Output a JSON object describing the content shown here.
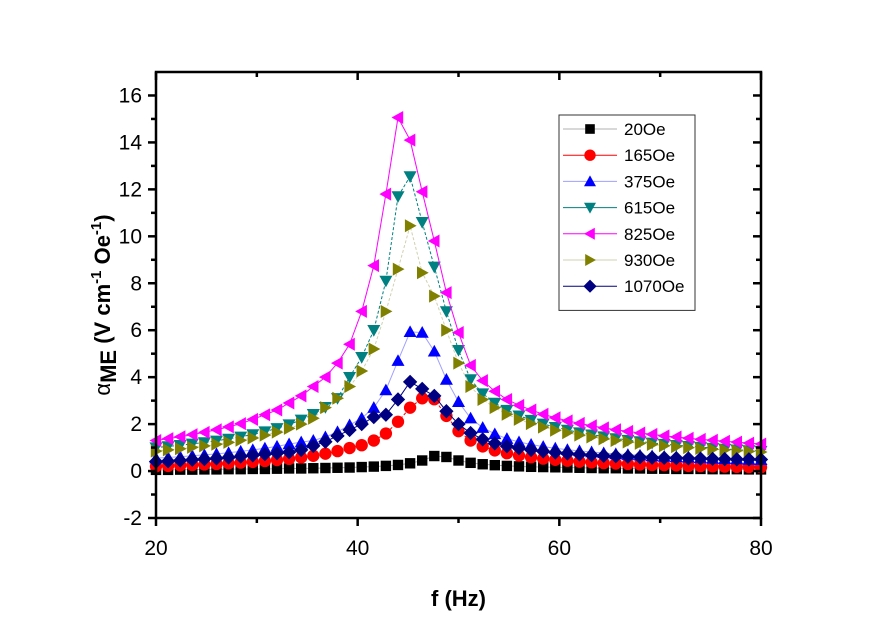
{
  "chart_data": {
    "type": "line",
    "title": "",
    "xlabel": "f (Hz)",
    "ylabel": {
      "symbol": "α",
      "subscript": "ME",
      "unit_open": " (V cm",
      "sup1": "-1",
      "unit_mid": " Oe",
      "sup2": "-1",
      "unit_close": ")"
    },
    "xlim": [
      20,
      80
    ],
    "ylim": [
      -2,
      17
    ],
    "xticks": [
      20,
      40,
      60,
      80
    ],
    "xticks_minor": [
      30,
      50,
      70
    ],
    "yticks": [
      -2,
      0,
      2,
      4,
      6,
      8,
      10,
      12,
      14,
      16
    ],
    "yticks_minor": [
      -1,
      1,
      3,
      5,
      7,
      9,
      11,
      13,
      15
    ],
    "grid": false,
    "legend_position": "top-right",
    "x": [
      20,
      21.2,
      22.4,
      23.6,
      24.8,
      26,
      27.2,
      28.4,
      29.6,
      30.8,
      32,
      33.2,
      34.4,
      35.6,
      36.8,
      38,
      39.2,
      40.4,
      41.6,
      42.8,
      44,
      45.2,
      46.4,
      47.6,
      48.8,
      50,
      51.2,
      52.4,
      53.6,
      54.8,
      56,
      57.2,
      58.4,
      59.6,
      60.8,
      62,
      63.2,
      64.4,
      65.6,
      66.8,
      68,
      69.2,
      70.4,
      71.6,
      72.8,
      74,
      75.2,
      76.4,
      77.6,
      78.8,
      80
    ],
    "series": [
      {
        "name": "20Oe",
        "marker": "square",
        "color": "#000000",
        "line_color": "#b0b0b0",
        "values": [
          0.05,
          0.05,
          0.06,
          0.06,
          0.07,
          0.07,
          0.08,
          0.08,
          0.09,
          0.09,
          0.1,
          0.11,
          0.11,
          0.12,
          0.13,
          0.14,
          0.15,
          0.17,
          0.19,
          0.22,
          0.26,
          0.33,
          0.45,
          0.64,
          0.6,
          0.45,
          0.35,
          0.29,
          0.25,
          0.22,
          0.2,
          0.18,
          0.17,
          0.16,
          0.15,
          0.14,
          0.13,
          0.12,
          0.12,
          0.11,
          0.11,
          0.1,
          0.1,
          0.09,
          0.09,
          0.09,
          0.08,
          0.08,
          0.08,
          0.07,
          0.07
        ]
      },
      {
        "name": "165Oe",
        "marker": "circle",
        "color": "#ff0000",
        "line_color": "#ff0000",
        "values": [
          0.2,
          0.22,
          0.24,
          0.26,
          0.28,
          0.3,
          0.33,
          0.36,
          0.39,
          0.43,
          0.47,
          0.52,
          0.58,
          0.65,
          0.74,
          0.85,
          0.98,
          1.1,
          1.3,
          1.6,
          2.1,
          2.7,
          3.1,
          3.06,
          2.35,
          1.7,
          1.3,
          1.05,
          0.88,
          0.76,
          0.66,
          0.59,
          0.53,
          0.48,
          0.44,
          0.4,
          0.37,
          0.34,
          0.32,
          0.3,
          0.28,
          0.26,
          0.25,
          0.24,
          0.22,
          0.21,
          0.2,
          0.19,
          0.18,
          0.17,
          0.16
        ]
      },
      {
        "name": "375Oe",
        "marker": "triangle-up",
        "color": "#0000ff",
        "line_color": "#a0a0ff",
        "values": [
          0.55,
          0.58,
          0.61,
          0.65,
          0.69,
          0.73,
          0.78,
          0.84,
          0.9,
          0.97,
          1.05,
          1.15,
          1.23,
          1.3,
          1.45,
          1.67,
          1.96,
          2.25,
          2.7,
          3.45,
          4.7,
          5.93,
          5.9,
          5.1,
          3.9,
          2.95,
          2.25,
          1.85,
          1.58,
          1.38,
          1.24,
          1.13,
          1.04,
          0.97,
          0.91,
          0.86,
          0.81,
          0.77,
          0.73,
          0.7,
          0.67,
          0.64,
          0.62,
          0.6,
          0.58,
          0.56,
          0.54,
          0.52,
          0.51,
          0.49,
          0.48
        ]
      },
      {
        "name": "615Oe",
        "marker": "triangle-down",
        "color": "#008080",
        "line_color": "#008080",
        "values": [
          1.0,
          1.05,
          1.1,
          1.16,
          1.22,
          1.29,
          1.37,
          1.46,
          1.56,
          1.68,
          1.82,
          1.98,
          2.18,
          2.42,
          2.72,
          3.1,
          4.0,
          4.85,
          6.0,
          8.1,
          11.7,
          12.55,
          10.6,
          8.7,
          6.8,
          5.15,
          3.9,
          3.3,
          2.9,
          2.6,
          2.36,
          2.17,
          2.01,
          1.87,
          1.75,
          1.64,
          1.55,
          1.47,
          1.39,
          1.32,
          1.26,
          1.2,
          1.15,
          1.1,
          1.06,
          1.02,
          0.98,
          0.94,
          0.91,
          0.88,
          0.85
        ]
      },
      {
        "name": "825Oe",
        "marker": "triangle-left",
        "color": "#ff00ff",
        "line_color": "#ff00ff",
        "values": [
          1.3,
          1.38,
          1.46,
          1.55,
          1.65,
          1.76,
          1.88,
          2.02,
          2.2,
          2.4,
          2.6,
          2.9,
          3.2,
          3.6,
          4.0,
          4.6,
          5.4,
          6.8,
          8.75,
          11.8,
          15.06,
          14.1,
          11.9,
          9.8,
          7.6,
          5.9,
          4.5,
          3.85,
          3.4,
          3.05,
          2.8,
          2.6,
          2.42,
          2.27,
          2.14,
          2.03,
          1.93,
          1.84,
          1.76,
          1.69,
          1.62,
          1.56,
          1.5,
          1.45,
          1.4,
          1.35,
          1.31,
          1.27,
          1.23,
          1.19,
          1.15
        ]
      },
      {
        "name": "930Oe",
        "marker": "triangle-right",
        "color": "#808000",
        "line_color": "#d0d0b0",
        "values": [
          0.85,
          0.9,
          0.95,
          1.01,
          1.07,
          1.14,
          1.22,
          1.31,
          1.41,
          1.53,
          1.66,
          1.82,
          2.0,
          2.25,
          2.7,
          3.1,
          3.6,
          4.26,
          5.2,
          6.8,
          8.6,
          10.45,
          8.45,
          7.45,
          6.0,
          4.6,
          3.6,
          3.05,
          2.7,
          2.42,
          2.2,
          2.02,
          1.87,
          1.74,
          1.63,
          1.53,
          1.45,
          1.37,
          1.3,
          1.24,
          1.18,
          1.13,
          1.08,
          1.04,
          1.0,
          0.96,
          0.93,
          0.9,
          0.87,
          0.84,
          0.81
        ]
      },
      {
        "name": "1070Oe",
        "marker": "diamond",
        "color": "#000080",
        "line_color": "#000080",
        "values": [
          0.4,
          0.42,
          0.45,
          0.48,
          0.51,
          0.54,
          0.58,
          0.62,
          0.67,
          0.72,
          0.76,
          0.8,
          0.9,
          1.07,
          1.25,
          1.5,
          1.75,
          2.0,
          2.3,
          2.4,
          3.05,
          3.8,
          3.5,
          3.2,
          2.55,
          2.0,
          1.62,
          1.35,
          1.18,
          1.06,
          0.97,
          0.9,
          0.84,
          0.79,
          0.75,
          0.71,
          0.68,
          0.65,
          0.63,
          0.61,
          0.59,
          0.57,
          0.56,
          0.55,
          0.54,
          0.53,
          0.52,
          0.51,
          0.5,
          0.5,
          0.49
        ]
      }
    ]
  }
}
